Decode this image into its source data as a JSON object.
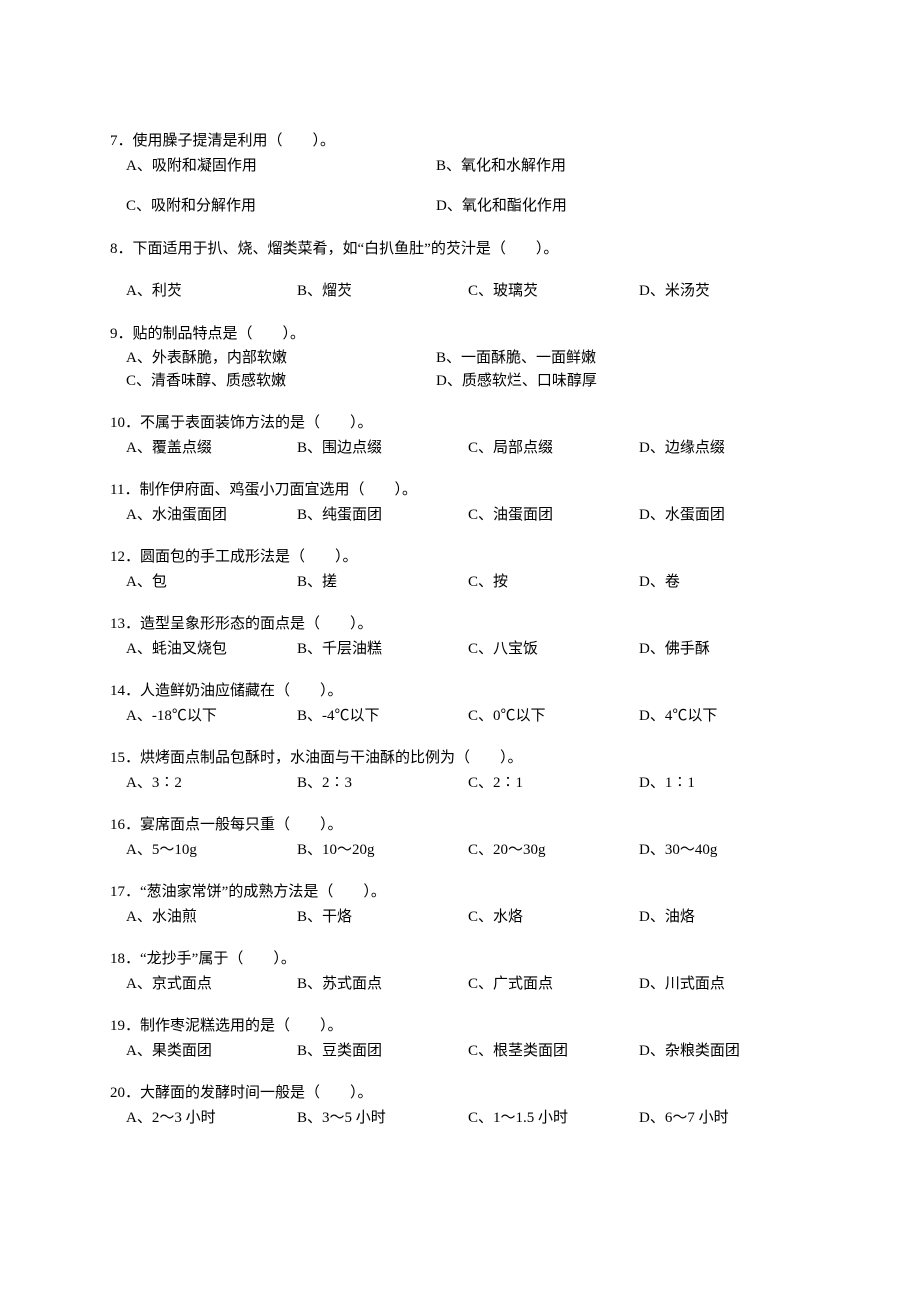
{
  "questions": [
    {
      "num": "7",
      "stem": "使用臊子提清是利用（　　）。",
      "layout": "two-col-gap",
      "options": [
        {
          "label": "A、",
          "text": "吸附和凝固作用"
        },
        {
          "label": "B、",
          "text": "氧化和水解作用"
        },
        {
          "label": "C、",
          "text": "吸附和分解作用"
        },
        {
          "label": "D、",
          "text": "氧化和酯化作用"
        }
      ]
    },
    {
      "num": "8",
      "stem": "下面适用于扒、烧、熘类菜肴，如“白扒鱼肚”的芡汁是（　　）。",
      "layout": "four-col-gap",
      "options": [
        {
          "label": "A、",
          "text": "利芡"
        },
        {
          "label": "B、",
          "text": "熘芡"
        },
        {
          "label": "C、",
          "text": "玻璃芡"
        },
        {
          "label": "D、",
          "text": "米汤芡"
        }
      ]
    },
    {
      "num": "9",
      "stem": "贴的制品特点是（　　）。",
      "layout": "two-col",
      "options": [
        {
          "label": "A、",
          "text": "外表酥脆，内部软嫩"
        },
        {
          "label": "B、",
          "text": "一面酥脆、一面鲜嫩"
        },
        {
          "label": "C、",
          "text": "清香味醇、质感软嫩"
        },
        {
          "label": "D、",
          "text": "质感软烂、口味醇厚"
        }
      ]
    },
    {
      "num": "10",
      "stem": "不属于表面装饰方法的是（　　）。",
      "layout": "four-col",
      "options": [
        {
          "label": "A、",
          "text": "覆盖点缀"
        },
        {
          "label": "B、",
          "text": "围边点缀"
        },
        {
          "label": "C、",
          "text": "局部点缀"
        },
        {
          "label": "D、",
          "text": "边缘点缀"
        }
      ]
    },
    {
      "num": "11",
      "stem": "制作伊府面、鸡蛋小刀面宜选用（　　）。",
      "layout": "four-col",
      "options": [
        {
          "label": "A、",
          "text": "水油蛋面团"
        },
        {
          "label": "B、",
          "text": "纯蛋面团"
        },
        {
          "label": "C、",
          "text": "油蛋面团"
        },
        {
          "label": "D、",
          "text": "水蛋面团"
        }
      ]
    },
    {
      "num": "12",
      "stem": "圆面包的手工成形法是（　　）。",
      "layout": "four-col",
      "options": [
        {
          "label": "A、",
          "text": "包"
        },
        {
          "label": "B、",
          "text": "搓"
        },
        {
          "label": "C、",
          "text": "按"
        },
        {
          "label": "D、",
          "text": "卷"
        }
      ]
    },
    {
      "num": "13",
      "stem": "造型呈象形形态的面点是（　　）。",
      "layout": "four-col",
      "options": [
        {
          "label": "A、",
          "text": "蚝油叉烧包"
        },
        {
          "label": "B、",
          "text": "千层油糕"
        },
        {
          "label": "C、",
          "text": "八宝饭"
        },
        {
          "label": "D、",
          "text": "佛手酥"
        }
      ]
    },
    {
      "num": "14",
      "stem": "人造鲜奶油应储藏在（　　）。",
      "layout": "four-col",
      "options": [
        {
          "label": "A、",
          "text": "-18℃以下"
        },
        {
          "label": "B、",
          "text": "-4℃以下"
        },
        {
          "label": "C、",
          "text": "0℃以下"
        },
        {
          "label": "D、",
          "text": "4℃以下"
        }
      ]
    },
    {
      "num": "15",
      "stem": "烘烤面点制品包酥时，水油面与干油酥的比例为（　　）。",
      "layout": "four-col",
      "options": [
        {
          "label": "A、",
          "text": "3∶2"
        },
        {
          "label": "B、",
          "text": "2∶3"
        },
        {
          "label": "C、",
          "text": "2∶1"
        },
        {
          "label": "D、",
          "text": "1∶1"
        }
      ]
    },
    {
      "num": "16",
      "stem": "宴席面点一般每只重（　　）。",
      "layout": "four-col",
      "options": [
        {
          "label": "A、",
          "text": "5～10g"
        },
        {
          "label": "B、",
          "text": "10～20g"
        },
        {
          "label": "C、",
          "text": "20～30g"
        },
        {
          "label": "D、",
          "text": "30～40g"
        }
      ]
    },
    {
      "num": "17",
      "stem": "“葱油家常饼”的成熟方法是（　　）。",
      "layout": "four-col",
      "options": [
        {
          "label": "A、",
          "text": "水油煎"
        },
        {
          "label": "B、",
          "text": "干烙"
        },
        {
          "label": "C、",
          "text": "水烙"
        },
        {
          "label": "D、",
          "text": "油烙"
        }
      ]
    },
    {
      "num": "18",
      "stem": "“龙抄手”属于（　　）。",
      "layout": "four-col",
      "options": [
        {
          "label": "A、",
          "text": "京式面点"
        },
        {
          "label": "B、",
          "text": "苏式面点"
        },
        {
          "label": "C、",
          "text": "广式面点"
        },
        {
          "label": "D、",
          "text": "川式面点"
        }
      ]
    },
    {
      "num": "19",
      "stem": "制作枣泥糕选用的是（　　）。",
      "layout": "four-col",
      "options": [
        {
          "label": "A、",
          "text": "果类面团"
        },
        {
          "label": "B、",
          "text": "豆类面团"
        },
        {
          "label": "C、",
          "text": "根茎类面团"
        },
        {
          "label": "D、",
          "text": "杂粮类面团"
        }
      ]
    },
    {
      "num": "20",
      "stem": "大酵面的发酵时间一般是（　　）。",
      "layout": "four-col",
      "options": [
        {
          "label": "A、",
          "text": "2～3 小时"
        },
        {
          "label": "B、",
          "text": "3～5 小时"
        },
        {
          "label": "C、",
          "text": "1～1.5 小时"
        },
        {
          "label": "D、",
          "text": "6～7 小时"
        }
      ]
    }
  ]
}
